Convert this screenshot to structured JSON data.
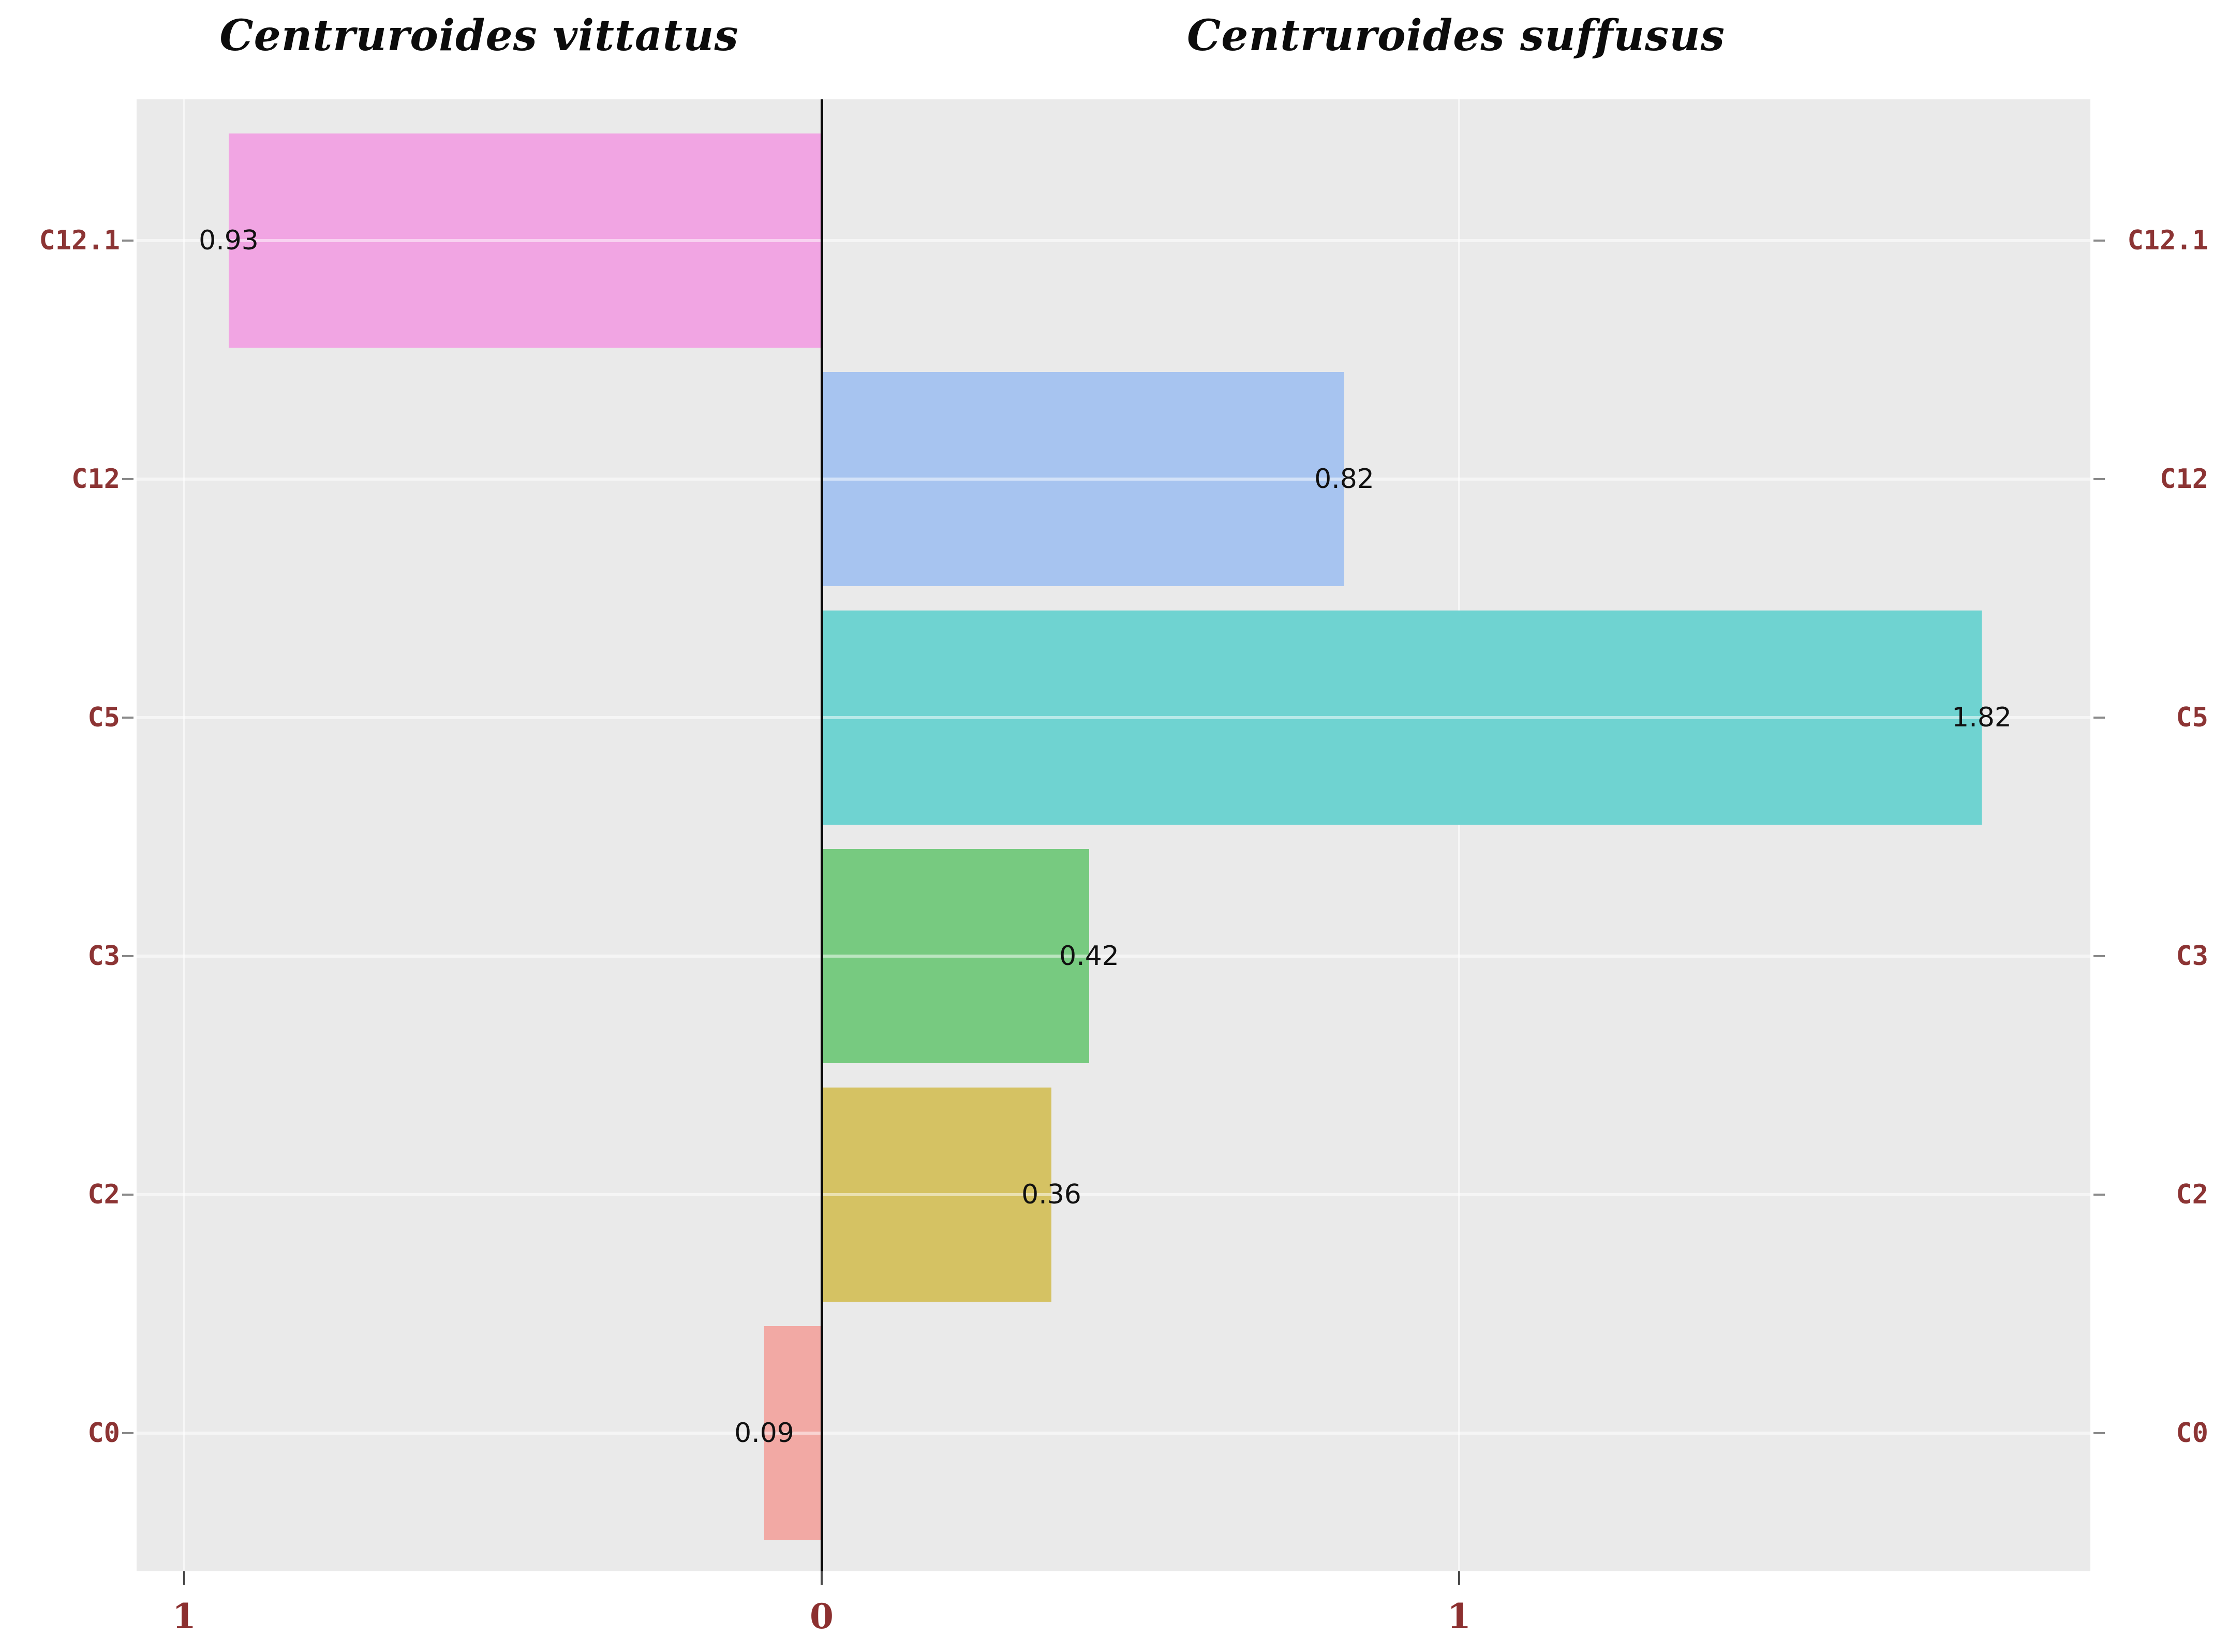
{
  "titles": {
    "left": "Centruroides vittatus",
    "right": "Centruroides suffusus"
  },
  "chart_data": {
    "type": "bar",
    "subtype": "diverging-horizontal-pyramid",
    "title_left": "Centruroides vittatus",
    "title_right": "Centruroides suffusus",
    "categories": [
      "C12.1",
      "C12",
      "C5",
      "C3",
      "C2",
      "C0"
    ],
    "series": [
      {
        "name": "Centruroides vittatus",
        "side": "left",
        "values": [
          0.93,
          null,
          null,
          null,
          null,
          0.09
        ]
      },
      {
        "name": "Centruroides suffusus",
        "side": "right",
        "values": [
          null,
          0.82,
          1.82,
          0.42,
          0.36,
          null
        ]
      }
    ],
    "bars": [
      {
        "category": "C12.1",
        "side": "left",
        "value": 0.93,
        "label": "0.93",
        "color": "#F1A5E3"
      },
      {
        "category": "C12",
        "side": "right",
        "value": 0.82,
        "label": "0.82",
        "color": "#A7C4F0"
      },
      {
        "category": "C5",
        "side": "right",
        "value": 1.82,
        "label": "1.82",
        "color": "#6FD3D1"
      },
      {
        "category": "C3",
        "side": "right",
        "value": 0.42,
        "label": "0.42",
        "color": "#77CA80"
      },
      {
        "category": "C2",
        "side": "right",
        "value": 0.36,
        "label": "0.36",
        "color": "#D5C263"
      },
      {
        "category": "C0",
        "side": "left",
        "value": 0.09,
        "label": "0.09",
        "color": "#F2A9A4"
      }
    ],
    "x_axis": {
      "ticks": [
        {
          "label": "1",
          "value": 1,
          "side": "left"
        },
        {
          "label": "0",
          "value": 0,
          "side": "center"
        },
        {
          "label": "1",
          "value": 1,
          "side": "right"
        }
      ],
      "left_limit": 1.075,
      "right_limit": 1.99
    },
    "grid": "horizontal white line per category; vertical white lines at ±1",
    "legend": "none",
    "panel_background": "#EAEAEA",
    "category_label_color": "#8C3434",
    "axis_number_color": "#8C3030",
    "value_label_color": "#111111",
    "zero_axis_color": "#0A0A0A"
  }
}
